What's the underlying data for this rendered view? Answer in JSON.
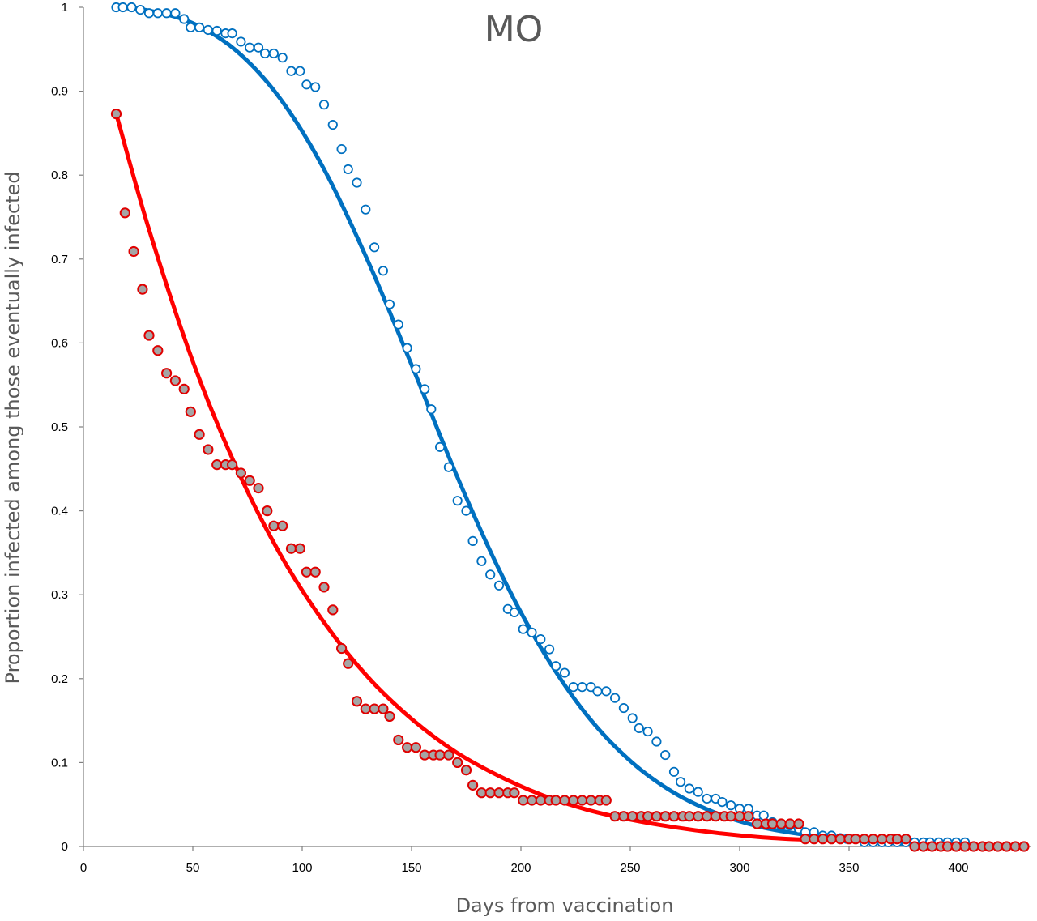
{
  "chart_data": {
    "type": "scatter",
    "title": "MO",
    "xlabel": "Days from vaccination",
    "ylabel": "Proportion infected among those eventually infected",
    "xlim": [
      0,
      430
    ],
    "ylim": [
      0,
      1
    ],
    "x_ticks": [
      "0",
      "50",
      "100",
      "150",
      "200",
      "250",
      "300",
      "350",
      "400"
    ],
    "y_ticks": [
      "0",
      "0.1",
      "0.2",
      "0.3",
      "0.4",
      "0.5",
      "0.6",
      "0.7",
      "0.8",
      "0.9",
      "1"
    ],
    "grid": false,
    "legend": "none",
    "series": [
      {
        "kind": "scatter-open",
        "color": "#0070c0",
        "points": [
          [
            15,
            1.0
          ],
          [
            18,
            1.0
          ],
          [
            22,
            1.0
          ],
          [
            26,
            0.997
          ],
          [
            30,
            0.993
          ],
          [
            34,
            0.993
          ],
          [
            38,
            0.993
          ],
          [
            42,
            0.993
          ],
          [
            46,
            0.986
          ],
          [
            49,
            0.976
          ],
          [
            53,
            0.976
          ],
          [
            57,
            0.973
          ],
          [
            61,
            0.972
          ],
          [
            65,
            0.969
          ],
          [
            68,
            0.969
          ],
          [
            72,
            0.959
          ],
          [
            76,
            0.952
          ],
          [
            80,
            0.952
          ],
          [
            83,
            0.945
          ],
          [
            87,
            0.945
          ],
          [
            91,
            0.94
          ],
          [
            95,
            0.924
          ],
          [
            99,
            0.924
          ],
          [
            102,
            0.908
          ],
          [
            106,
            0.905
          ],
          [
            110,
            0.884
          ],
          [
            114,
            0.86
          ],
          [
            118,
            0.831
          ],
          [
            121,
            0.807
          ],
          [
            125,
            0.791
          ],
          [
            129,
            0.759
          ],
          [
            133,
            0.714
          ],
          [
            137,
            0.686
          ],
          [
            140,
            0.646
          ],
          [
            144,
            0.622
          ],
          [
            148,
            0.594
          ],
          [
            152,
            0.569
          ],
          [
            156,
            0.545
          ],
          [
            159,
            0.521
          ],
          [
            163,
            0.476
          ],
          [
            167,
            0.452
          ],
          [
            171,
            0.412
          ],
          [
            175,
            0.4
          ],
          [
            178,
            0.364
          ],
          [
            182,
            0.34
          ],
          [
            186,
            0.324
          ],
          [
            190,
            0.311
          ],
          [
            194,
            0.283
          ],
          [
            197,
            0.279
          ],
          [
            201,
            0.259
          ],
          [
            205,
            0.255
          ],
          [
            209,
            0.247
          ],
          [
            213,
            0.235
          ],
          [
            216,
            0.215
          ],
          [
            220,
            0.207
          ],
          [
            224,
            0.19
          ],
          [
            228,
            0.19
          ],
          [
            232,
            0.19
          ],
          [
            235,
            0.185
          ],
          [
            239,
            0.185
          ],
          [
            243,
            0.177
          ],
          [
            247,
            0.165
          ],
          [
            251,
            0.153
          ],
          [
            254,
            0.141
          ],
          [
            258,
            0.137
          ],
          [
            262,
            0.125
          ],
          [
            266,
            0.109
          ],
          [
            270,
            0.089
          ],
          [
            273,
            0.077
          ],
          [
            277,
            0.069
          ],
          [
            281,
            0.065
          ],
          [
            285,
            0.057
          ],
          [
            289,
            0.057
          ],
          [
            292,
            0.053
          ],
          [
            296,
            0.049
          ],
          [
            300,
            0.045
          ],
          [
            304,
            0.045
          ],
          [
            308,
            0.037
          ],
          [
            311,
            0.037
          ],
          [
            315,
            0.029
          ],
          [
            319,
            0.025
          ],
          [
            323,
            0.025
          ],
          [
            327,
            0.021
          ],
          [
            330,
            0.017
          ],
          [
            334,
            0.017
          ],
          [
            338,
            0.013
          ],
          [
            342,
            0.013
          ],
          [
            346,
            0.01
          ],
          [
            349,
            0.009
          ],
          [
            353,
            0.009
          ],
          [
            357,
            0.005
          ],
          [
            361,
            0.005
          ],
          [
            365,
            0.005
          ],
          [
            368,
            0.005
          ],
          [
            372,
            0.005
          ],
          [
            376,
            0.005
          ],
          [
            380,
            0.005
          ],
          [
            384,
            0.005
          ],
          [
            387,
            0.005
          ],
          [
            391,
            0.005
          ],
          [
            395,
            0.005
          ],
          [
            399,
            0.005
          ],
          [
            403,
            0.005
          ]
        ]
      },
      {
        "kind": "scatter-filled",
        "color": "#e00000",
        "fill": "#a5a5a5",
        "points": [
          [
            15,
            0.873
          ],
          [
            19,
            0.755
          ],
          [
            23,
            0.709
          ],
          [
            27,
            0.664
          ],
          [
            30,
            0.609
          ],
          [
            34,
            0.591
          ],
          [
            38,
            0.564
          ],
          [
            42,
            0.555
          ],
          [
            46,
            0.545
          ],
          [
            49,
            0.518
          ],
          [
            53,
            0.491
          ],
          [
            57,
            0.473
          ],
          [
            61,
            0.455
          ],
          [
            65,
            0.455
          ],
          [
            68,
            0.455
          ],
          [
            72,
            0.445
          ],
          [
            76,
            0.436
          ],
          [
            80,
            0.427
          ],
          [
            84,
            0.4
          ],
          [
            87,
            0.382
          ],
          [
            91,
            0.382
          ],
          [
            95,
            0.355
          ],
          [
            99,
            0.355
          ],
          [
            102,
            0.327
          ],
          [
            106,
            0.327
          ],
          [
            110,
            0.309
          ],
          [
            114,
            0.282
          ],
          [
            118,
            0.236
          ],
          [
            121,
            0.218
          ],
          [
            125,
            0.173
          ],
          [
            129,
            0.164
          ],
          [
            133,
            0.164
          ],
          [
            137,
            0.164
          ],
          [
            140,
            0.155
          ],
          [
            144,
            0.127
          ],
          [
            148,
            0.118
          ],
          [
            152,
            0.118
          ],
          [
            156,
            0.109
          ],
          [
            160,
            0.109
          ],
          [
            163,
            0.109
          ],
          [
            167,
            0.109
          ],
          [
            171,
            0.1
          ],
          [
            175,
            0.091
          ],
          [
            178,
            0.073
          ],
          [
            182,
            0.064
          ],
          [
            186,
            0.064
          ],
          [
            190,
            0.064
          ],
          [
            194,
            0.064
          ],
          [
            197,
            0.064
          ],
          [
            201,
            0.055
          ],
          [
            205,
            0.055
          ],
          [
            209,
            0.055
          ],
          [
            213,
            0.055
          ],
          [
            216,
            0.055
          ],
          [
            220,
            0.055
          ],
          [
            224,
            0.055
          ],
          [
            228,
            0.055
          ],
          [
            232,
            0.055
          ],
          [
            236,
            0.055
          ],
          [
            239,
            0.055
          ],
          [
            243,
            0.036
          ],
          [
            247,
            0.036
          ],
          [
            251,
            0.036
          ],
          [
            255,
            0.036
          ],
          [
            258,
            0.036
          ],
          [
            262,
            0.036
          ],
          [
            266,
            0.036
          ],
          [
            270,
            0.036
          ],
          [
            274,
            0.036
          ],
          [
            277,
            0.036
          ],
          [
            281,
            0.036
          ],
          [
            285,
            0.036
          ],
          [
            289,
            0.036
          ],
          [
            293,
            0.036
          ],
          [
            296,
            0.036
          ],
          [
            300,
            0.036
          ],
          [
            304,
            0.036
          ],
          [
            308,
            0.027
          ],
          [
            312,
            0.027
          ],
          [
            315,
            0.027
          ],
          [
            319,
            0.027
          ],
          [
            323,
            0.027
          ],
          [
            327,
            0.027
          ],
          [
            330,
            0.009
          ],
          [
            334,
            0.009
          ],
          [
            338,
            0.009
          ],
          [
            342,
            0.009
          ],
          [
            346,
            0.009
          ],
          [
            350,
            0.009
          ],
          [
            353,
            0.009
          ],
          [
            357,
            0.009
          ],
          [
            361,
            0.009
          ],
          [
            365,
            0.009
          ],
          [
            369,
            0.009
          ],
          [
            372,
            0.009
          ],
          [
            376,
            0.009
          ],
          [
            380,
            0.0
          ],
          [
            384,
            0.0
          ],
          [
            388,
            0.0
          ],
          [
            392,
            0.0
          ],
          [
            395,
            0.0
          ],
          [
            399,
            0.0
          ],
          [
            403,
            0.0
          ],
          [
            407,
            0.0
          ],
          [
            411,
            0.0
          ],
          [
            414,
            0.0
          ],
          [
            418,
            0.0
          ],
          [
            422,
            0.0
          ],
          [
            426,
            0.0
          ],
          [
            430,
            0.0
          ]
        ]
      },
      {
        "kind": "fitted-line",
        "color": "#0070c0",
        "points": [
          [
            15,
            1.0
          ],
          [
            30,
            0.996
          ],
          [
            50,
            0.981
          ],
          [
            70,
            0.948
          ],
          [
            90,
            0.891
          ],
          [
            110,
            0.807
          ],
          [
            130,
            0.698
          ],
          [
            150,
            0.574
          ],
          [
            170,
            0.446
          ],
          [
            190,
            0.33
          ],
          [
            210,
            0.233
          ],
          [
            230,
            0.157
          ],
          [
            250,
            0.102
          ],
          [
            270,
            0.064
          ],
          [
            290,
            0.039
          ],
          [
            310,
            0.023
          ],
          [
            330,
            0.014
          ],
          [
            350,
            0.008
          ],
          [
            370,
            0.004
          ],
          [
            390,
            0.002
          ],
          [
            400,
            0.002
          ]
        ]
      },
      {
        "kind": "fitted-line",
        "color": "#ff0000",
        "points": [
          [
            15,
            0.873
          ],
          [
            30,
            0.735
          ],
          [
            50,
            0.578
          ],
          [
            70,
            0.451
          ],
          [
            90,
            0.348
          ],
          [
            110,
            0.267
          ],
          [
            130,
            0.202
          ],
          [
            150,
            0.152
          ],
          [
            170,
            0.113
          ],
          [
            190,
            0.084
          ],
          [
            210,
            0.061
          ],
          [
            230,
            0.044
          ],
          [
            250,
            0.032
          ],
          [
            270,
            0.023
          ],
          [
            290,
            0.016
          ],
          [
            310,
            0.011
          ],
          [
            330,
            0.008
          ]
        ]
      }
    ]
  }
}
